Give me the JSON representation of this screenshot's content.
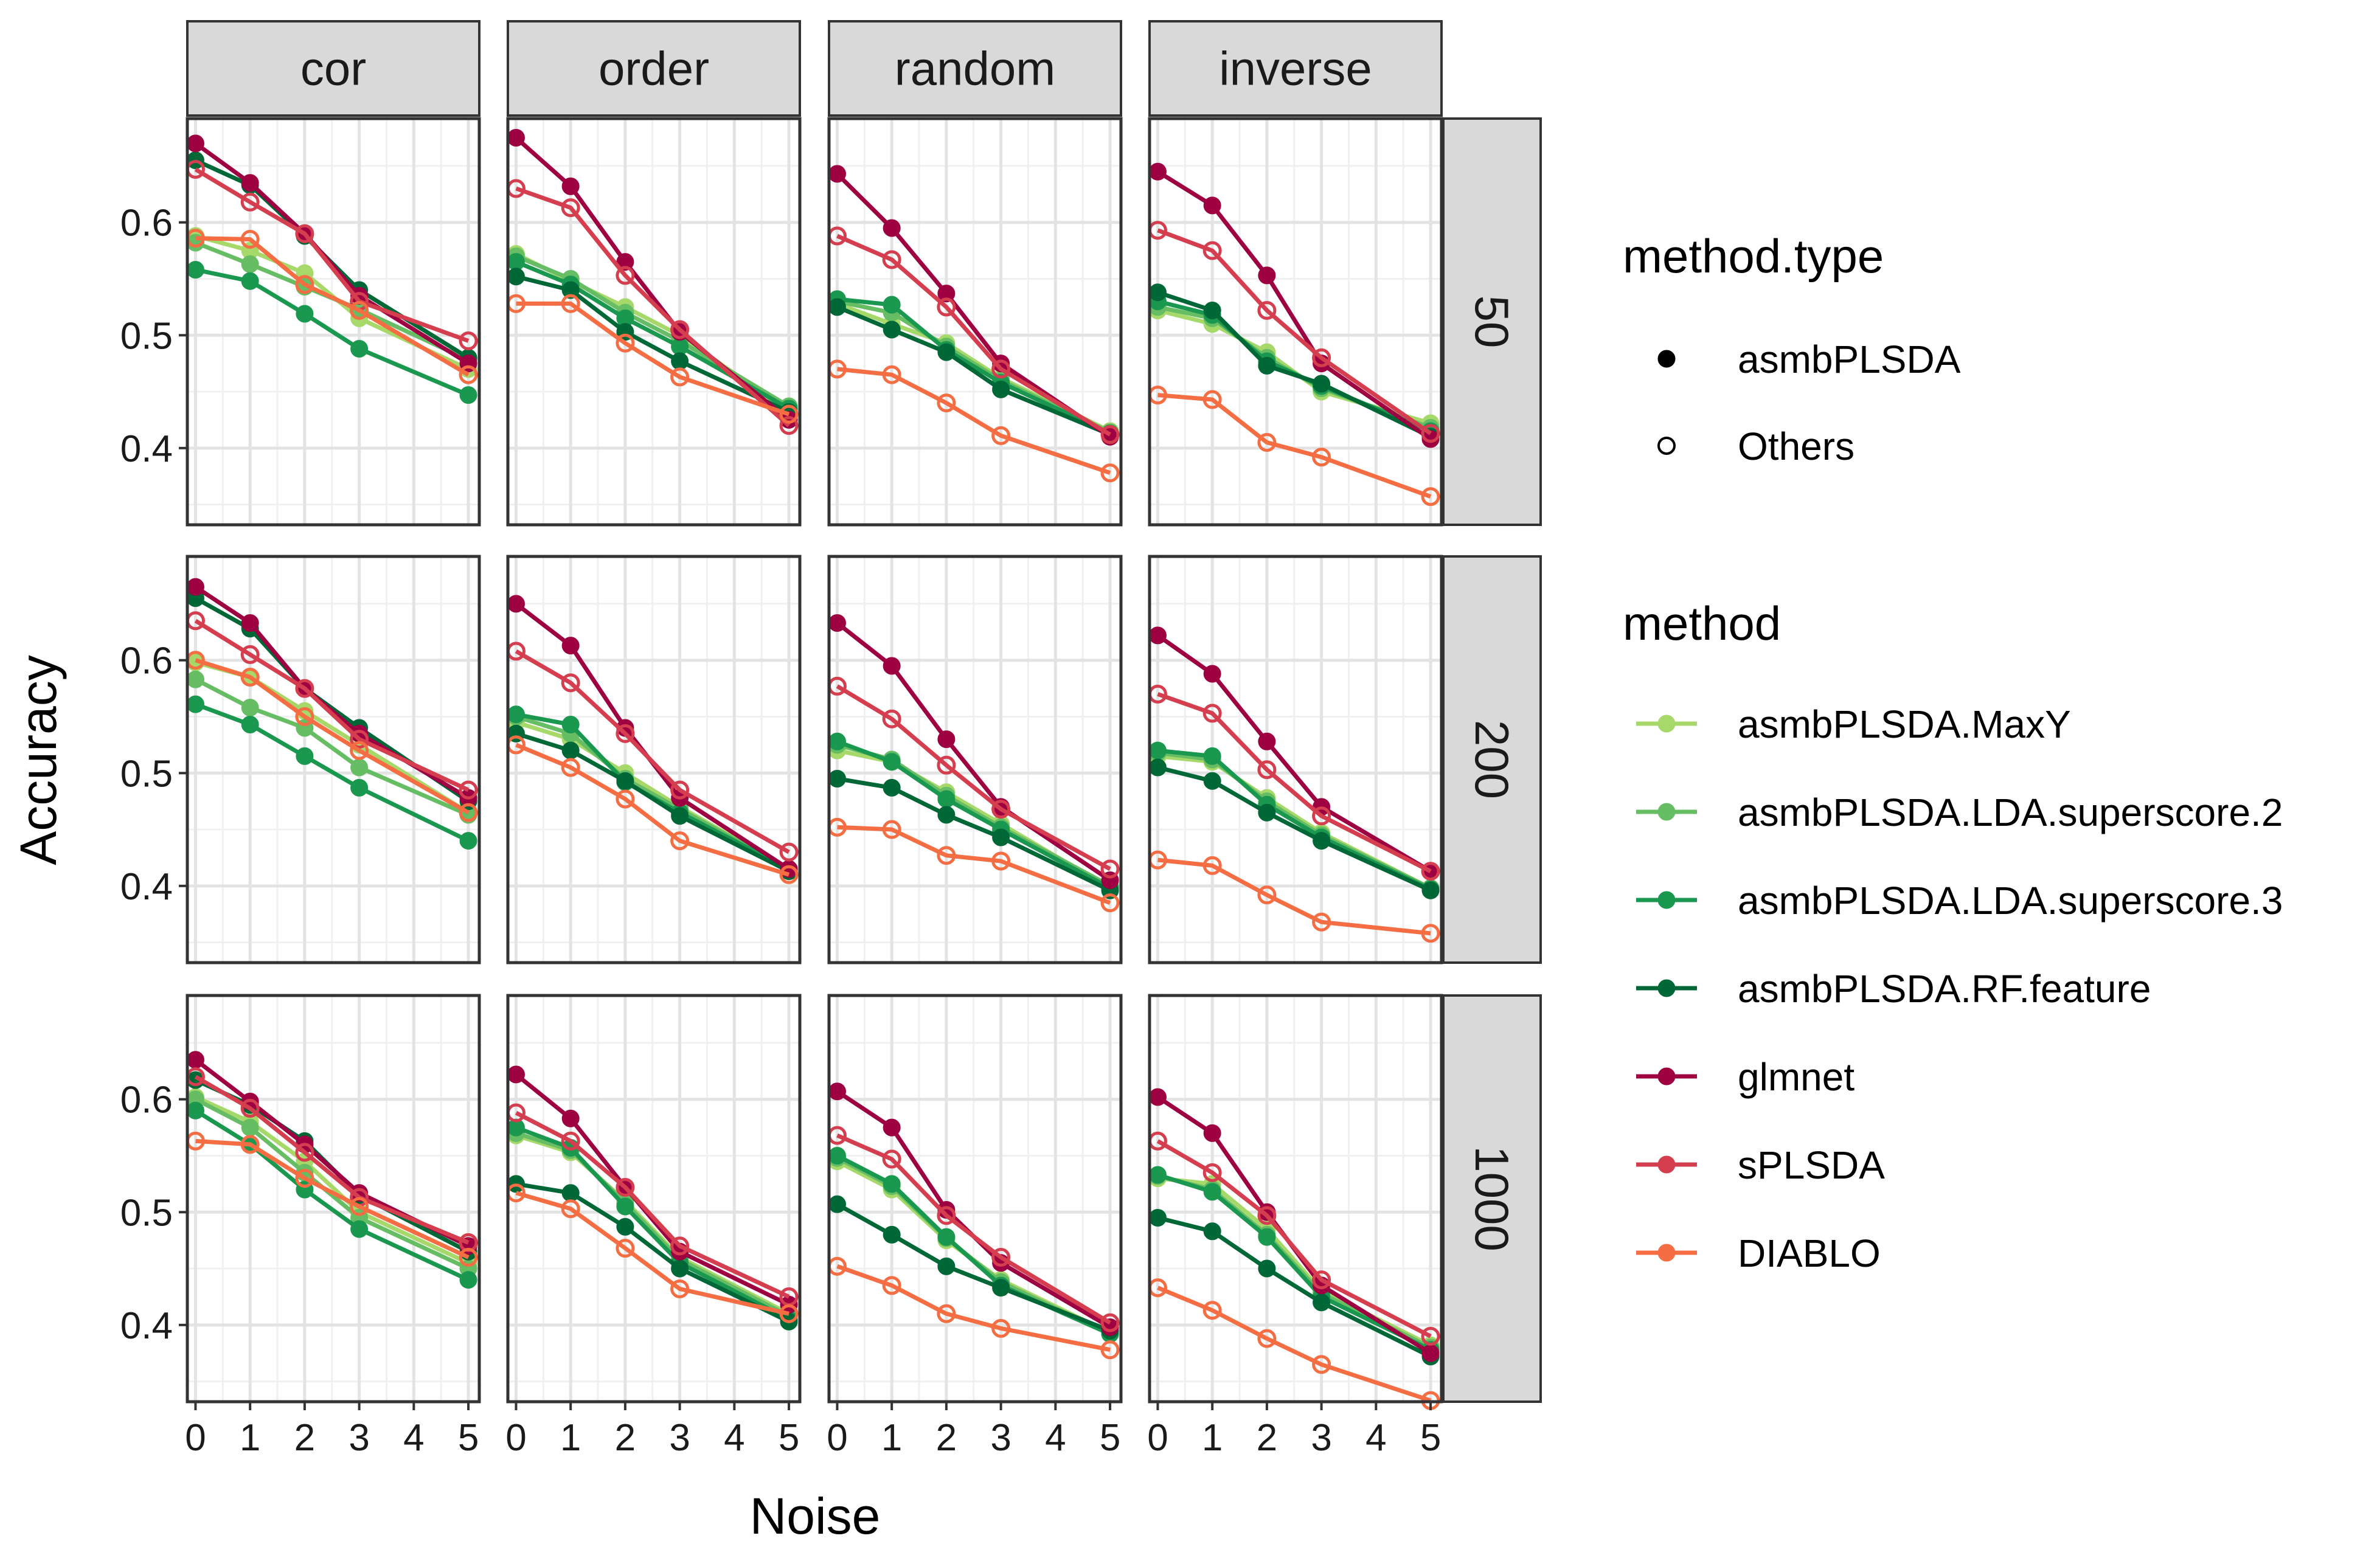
{
  "chart_data": {
    "type": "line",
    "x_label": "Noise",
    "y_label": "Accuracy",
    "x_ticks": [
      0,
      1,
      2,
      3,
      4,
      5
    ],
    "x_range": [
      0,
      5
    ],
    "y_ticks": [
      0.4,
      0.5,
      0.6
    ],
    "y_range": [
      0.33,
      0.69
    ],
    "grid": true,
    "legend_position": "right",
    "col_facets": [
      "cor",
      "order",
      "random",
      "inverse"
    ],
    "row_facets": [
      "50",
      "200",
      "1000"
    ],
    "x": [
      0,
      1,
      2,
      3,
      5
    ],
    "method_type_title": "method.type",
    "method_type_legend": [
      {
        "label": "asmbPLSDA",
        "shape": "filled-circle"
      },
      {
        "label": "Others",
        "shape": "open-circle"
      }
    ],
    "method_title": "method",
    "methods": [
      {
        "name": "asmbPLSDA.MaxY",
        "color": "#a6d96a",
        "filled": true
      },
      {
        "name": "asmbPLSDA.LDA.superscore.2",
        "color": "#66bd63",
        "filled": true
      },
      {
        "name": "asmbPLSDA.LDA.superscore.3",
        "color": "#1a9850",
        "filled": true
      },
      {
        "name": "asmbPLSDA.RF.feature",
        "color": "#006837",
        "filled": true
      },
      {
        "name": "glmnet",
        "color": "#9e0142",
        "filled": true
      },
      {
        "name": "sPLSDA",
        "color": "#d53e4f",
        "filled": false
      },
      {
        "name": "DIABLO",
        "color": "#f46d43",
        "filled": false
      }
    ],
    "panels": [
      {
        "row": "50",
        "col": "cor",
        "series": {
          "asmbPLSDA.MaxY": [
            0.588,
            0.575,
            0.555,
            0.515,
            0.47
          ],
          "asmbPLSDA.LDA.superscore.2": [
            0.582,
            0.563,
            0.543,
            0.523,
            0.478
          ],
          "asmbPLSDA.LDA.superscore.3": [
            0.558,
            0.548,
            0.519,
            0.488,
            0.447
          ],
          "asmbPLSDA.RF.feature": [
            0.655,
            0.633,
            0.588,
            0.54,
            0.48
          ],
          "glmnet": [
            0.67,
            0.635,
            0.59,
            0.535,
            0.475
          ],
          "sPLSDA": [
            0.647,
            0.618,
            0.59,
            0.53,
            0.495
          ],
          "DIABLO": [
            0.586,
            0.585,
            0.545,
            0.522,
            0.465
          ]
        }
      },
      {
        "row": "50",
        "col": "order",
        "series": {
          "asmbPLSDA.MaxY": [
            0.572,
            0.548,
            0.525,
            0.5,
            0.432
          ],
          "asmbPLSDA.LDA.superscore.2": [
            0.57,
            0.55,
            0.52,
            0.495,
            0.437
          ],
          "asmbPLSDA.LDA.superscore.3": [
            0.565,
            0.545,
            0.515,
            0.49,
            0.435
          ],
          "asmbPLSDA.RF.feature": [
            0.552,
            0.54,
            0.503,
            0.477,
            0.432
          ],
          "glmnet": [
            0.675,
            0.632,
            0.565,
            0.503,
            0.425
          ],
          "sPLSDA": [
            0.63,
            0.613,
            0.553,
            0.505,
            0.42
          ],
          "DIABLO": [
            0.528,
            0.528,
            0.493,
            0.463,
            0.43
          ]
        }
      },
      {
        "row": "50",
        "col": "random",
        "series": {
          "asmbPLSDA.MaxY": [
            0.528,
            0.51,
            0.493,
            0.462,
            0.415
          ],
          "asmbPLSDA.LDA.superscore.2": [
            0.53,
            0.52,
            0.49,
            0.46,
            0.414
          ],
          "asmbPLSDA.LDA.superscore.3": [
            0.532,
            0.527,
            0.487,
            0.458,
            0.413
          ],
          "asmbPLSDA.RF.feature": [
            0.525,
            0.505,
            0.485,
            0.452,
            0.412
          ],
          "glmnet": [
            0.643,
            0.595,
            0.537,
            0.475,
            0.41
          ],
          "sPLSDA": [
            0.588,
            0.567,
            0.525,
            0.47,
            0.412
          ],
          "DIABLO": [
            0.47,
            0.465,
            0.44,
            0.411,
            0.378
          ]
        }
      },
      {
        "row": "50",
        "col": "inverse",
        "series": {
          "asmbPLSDA.MaxY": [
            0.522,
            0.51,
            0.485,
            0.45,
            0.422
          ],
          "asmbPLSDA.LDA.superscore.2": [
            0.525,
            0.515,
            0.48,
            0.453,
            0.418
          ],
          "asmbPLSDA.LDA.superscore.3": [
            0.53,
            0.518,
            0.477,
            0.455,
            0.415
          ],
          "asmbPLSDA.RF.feature": [
            0.538,
            0.522,
            0.473,
            0.457,
            0.41
          ],
          "glmnet": [
            0.645,
            0.615,
            0.553,
            0.475,
            0.408
          ],
          "sPLSDA": [
            0.593,
            0.575,
            0.522,
            0.48,
            0.413
          ],
          "DIABLO": [
            0.447,
            0.443,
            0.405,
            0.392,
            0.357
          ]
        }
      },
      {
        "row": "200",
        "col": "cor",
        "series": {
          "asmbPLSDA.MaxY": [
            0.598,
            0.585,
            0.555,
            0.525,
            0.465
          ],
          "asmbPLSDA.LDA.superscore.2": [
            0.583,
            0.558,
            0.54,
            0.505,
            0.463
          ],
          "asmbPLSDA.LDA.superscore.3": [
            0.561,
            0.543,
            0.515,
            0.487,
            0.44
          ],
          "asmbPLSDA.RF.feature": [
            0.655,
            0.628,
            0.575,
            0.54,
            0.475
          ],
          "glmnet": [
            0.665,
            0.633,
            0.575,
            0.535,
            0.478
          ],
          "sPLSDA": [
            0.635,
            0.605,
            0.575,
            0.53,
            0.485
          ],
          "DIABLO": [
            0.6,
            0.585,
            0.55,
            0.52,
            0.465
          ]
        }
      },
      {
        "row": "200",
        "col": "order",
        "series": {
          "asmbPLSDA.MaxY": [
            0.545,
            0.53,
            0.5,
            0.47,
            0.415
          ],
          "asmbPLSDA.LDA.superscore.2": [
            0.55,
            0.535,
            0.495,
            0.468,
            0.415
          ],
          "asmbPLSDA.LDA.superscore.3": [
            0.552,
            0.543,
            0.492,
            0.465,
            0.415
          ],
          "asmbPLSDA.RF.feature": [
            0.535,
            0.52,
            0.493,
            0.462,
            0.413
          ],
          "glmnet": [
            0.65,
            0.613,
            0.54,
            0.478,
            0.415
          ],
          "sPLSDA": [
            0.608,
            0.58,
            0.535,
            0.485,
            0.43
          ],
          "DIABLO": [
            0.525,
            0.505,
            0.477,
            0.44,
            0.41
          ]
        }
      },
      {
        "row": "200",
        "col": "random",
        "series": {
          "asmbPLSDA.MaxY": [
            0.52,
            0.51,
            0.483,
            0.455,
            0.398
          ],
          "asmbPLSDA.LDA.superscore.2": [
            0.525,
            0.512,
            0.48,
            0.452,
            0.4
          ],
          "asmbPLSDA.LDA.superscore.3": [
            0.528,
            0.51,
            0.477,
            0.45,
            0.398
          ],
          "asmbPLSDA.RF.feature": [
            0.495,
            0.487,
            0.463,
            0.443,
            0.396
          ],
          "glmnet": [
            0.633,
            0.595,
            0.53,
            0.47,
            0.405
          ],
          "sPLSDA": [
            0.577,
            0.548,
            0.507,
            0.468,
            0.415
          ],
          "DIABLO": [
            0.452,
            0.45,
            0.427,
            0.422,
            0.385
          ]
        }
      },
      {
        "row": "200",
        "col": "inverse",
        "series": {
          "asmbPLSDA.MaxY": [
            0.515,
            0.51,
            0.478,
            0.447,
            0.398
          ],
          "asmbPLSDA.LDA.superscore.2": [
            0.518,
            0.512,
            0.475,
            0.445,
            0.398
          ],
          "asmbPLSDA.LDA.superscore.3": [
            0.52,
            0.515,
            0.472,
            0.443,
            0.397
          ],
          "asmbPLSDA.RF.feature": [
            0.505,
            0.493,
            0.465,
            0.44,
            0.396
          ],
          "glmnet": [
            0.622,
            0.588,
            0.528,
            0.47,
            0.413
          ],
          "sPLSDA": [
            0.57,
            0.553,
            0.503,
            0.462,
            0.413
          ],
          "DIABLO": [
            0.423,
            0.418,
            0.392,
            0.368,
            0.358
          ]
        }
      },
      {
        "row": "1000",
        "col": "cor",
        "series": {
          "asmbPLSDA.MaxY": [
            0.602,
            0.58,
            0.545,
            0.5,
            0.455
          ],
          "asmbPLSDA.LDA.superscore.2": [
            0.6,
            0.575,
            0.535,
            0.495,
            0.45
          ],
          "asmbPLSDA.LDA.superscore.3": [
            0.59,
            0.56,
            0.52,
            0.485,
            0.44
          ],
          "asmbPLSDA.RF.feature": [
            0.617,
            0.595,
            0.563,
            0.515,
            0.465
          ],
          "glmnet": [
            0.635,
            0.598,
            0.56,
            0.517,
            0.47
          ],
          "sPLSDA": [
            0.62,
            0.592,
            0.553,
            0.513,
            0.473
          ],
          "DIABLO": [
            0.563,
            0.56,
            0.53,
            0.505,
            0.46
          ]
        }
      },
      {
        "row": "1000",
        "col": "order",
        "series": {
          "asmbPLSDA.MaxY": [
            0.568,
            0.553,
            0.51,
            0.46,
            0.41
          ],
          "asmbPLSDA.LDA.superscore.2": [
            0.57,
            0.555,
            0.508,
            0.458,
            0.408
          ],
          "asmbPLSDA.LDA.superscore.3": [
            0.575,
            0.557,
            0.505,
            0.455,
            0.405
          ],
          "asmbPLSDA.RF.feature": [
            0.525,
            0.517,
            0.487,
            0.45,
            0.403
          ],
          "glmnet": [
            0.622,
            0.583,
            0.522,
            0.465,
            0.418
          ],
          "sPLSDA": [
            0.588,
            0.563,
            0.522,
            0.47,
            0.425
          ],
          "DIABLO": [
            0.517,
            0.503,
            0.468,
            0.432,
            0.41
          ]
        }
      },
      {
        "row": "1000",
        "col": "random",
        "series": {
          "asmbPLSDA.MaxY": [
            0.545,
            0.52,
            0.475,
            0.44,
            0.393
          ],
          "asmbPLSDA.LDA.superscore.2": [
            0.548,
            0.523,
            0.477,
            0.438,
            0.392
          ],
          "asmbPLSDA.LDA.superscore.3": [
            0.55,
            0.525,
            0.478,
            0.435,
            0.392
          ],
          "asmbPLSDA.RF.feature": [
            0.507,
            0.48,
            0.452,
            0.433,
            0.395
          ],
          "glmnet": [
            0.607,
            0.575,
            0.502,
            0.455,
            0.398
          ],
          "sPLSDA": [
            0.568,
            0.547,
            0.497,
            0.46,
            0.402
          ],
          "DIABLO": [
            0.452,
            0.435,
            0.41,
            0.397,
            0.378
          ]
        }
      },
      {
        "row": "1000",
        "col": "inverse",
        "series": {
          "asmbPLSDA.MaxY": [
            0.53,
            0.525,
            0.485,
            0.43,
            0.382
          ],
          "asmbPLSDA.LDA.superscore.2": [
            0.532,
            0.52,
            0.48,
            0.428,
            0.38
          ],
          "asmbPLSDA.LDA.superscore.3": [
            0.533,
            0.518,
            0.478,
            0.425,
            0.378
          ],
          "asmbPLSDA.RF.feature": [
            0.495,
            0.483,
            0.45,
            0.42,
            0.372
          ],
          "glmnet": [
            0.602,
            0.57,
            0.5,
            0.435,
            0.375
          ],
          "sPLSDA": [
            0.563,
            0.535,
            0.497,
            0.44,
            0.39
          ],
          "DIABLO": [
            0.433,
            0.413,
            0.388,
            0.365,
            0.333
          ]
        }
      }
    ]
  }
}
